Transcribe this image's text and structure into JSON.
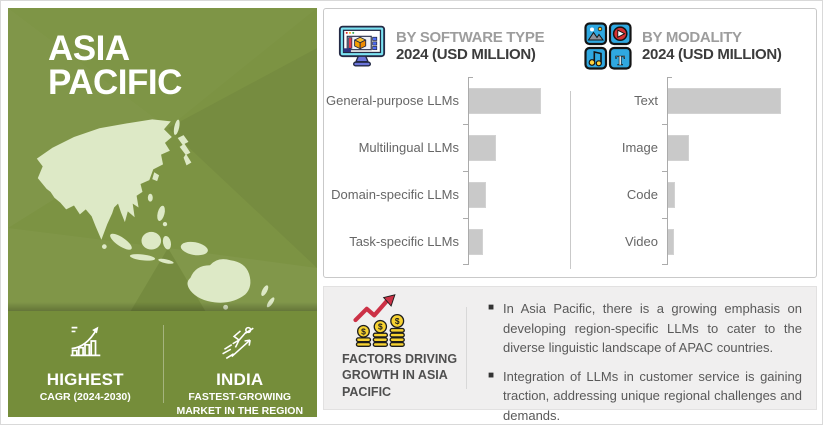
{
  "region_panel": {
    "title_line1": "ASIA",
    "title_line2": "PACIFIC",
    "stats": [
      {
        "icon": "growth-chart-icon",
        "title": "HIGHEST",
        "subtitle": "CAGR (2024-2030)"
      },
      {
        "icon": "runner-growth-icon",
        "title": "INDIA",
        "subtitle": "FASTEST-GROWING MARKET IN THE REGION"
      }
    ]
  },
  "chart_data": [
    {
      "type": "bar",
      "orientation": "horizontal",
      "title": "BY SOFTWARE TYPE",
      "subtitle": "2024 (USD MILLION)",
      "categories": [
        "General-purpose LLMs",
        "Multilingual LLMs",
        "Domain-specific LLMs",
        "Task-specific LLMs"
      ],
      "relative_values": [
        100,
        38,
        24,
        20
      ],
      "value_labels_shown": false,
      "grid": false,
      "bar_color": "#c9c9c9"
    },
    {
      "type": "bar",
      "orientation": "horizontal",
      "title": "BY MODALITY",
      "subtitle": "2024 (USD MILLION)",
      "categories": [
        "Text",
        "Image",
        "Code",
        "Video"
      ],
      "relative_values": [
        100,
        19,
        7,
        6
      ],
      "value_labels_shown": false,
      "grid": false,
      "bar_color": "#c9c9c9"
    }
  ],
  "factors": {
    "icon": "coins-growth-icon",
    "title": "FACTORS DRIVING GROWTH IN ASIA PACIFIC",
    "bullets": [
      {
        "text": "In Asia Pacific, there is a growing emphasis on developing region-specific LLMs to cater to the diverse linguistic landscape of APAC countries."
      },
      {
        "text": "Integration of LLMs in customer service is gaining traction, addressing unique regional challenges and demands."
      }
    ]
  },
  "colors": {
    "panel_green": "#7c9343",
    "panel_band_green": "#758d3a",
    "map_fill": "#dde9c6",
    "bar_fill": "#c9c9c9",
    "title_gray": "#9d9d9d",
    "subtitle_dark": "#3c3c3c",
    "factors_bg": "#f0efef"
  }
}
